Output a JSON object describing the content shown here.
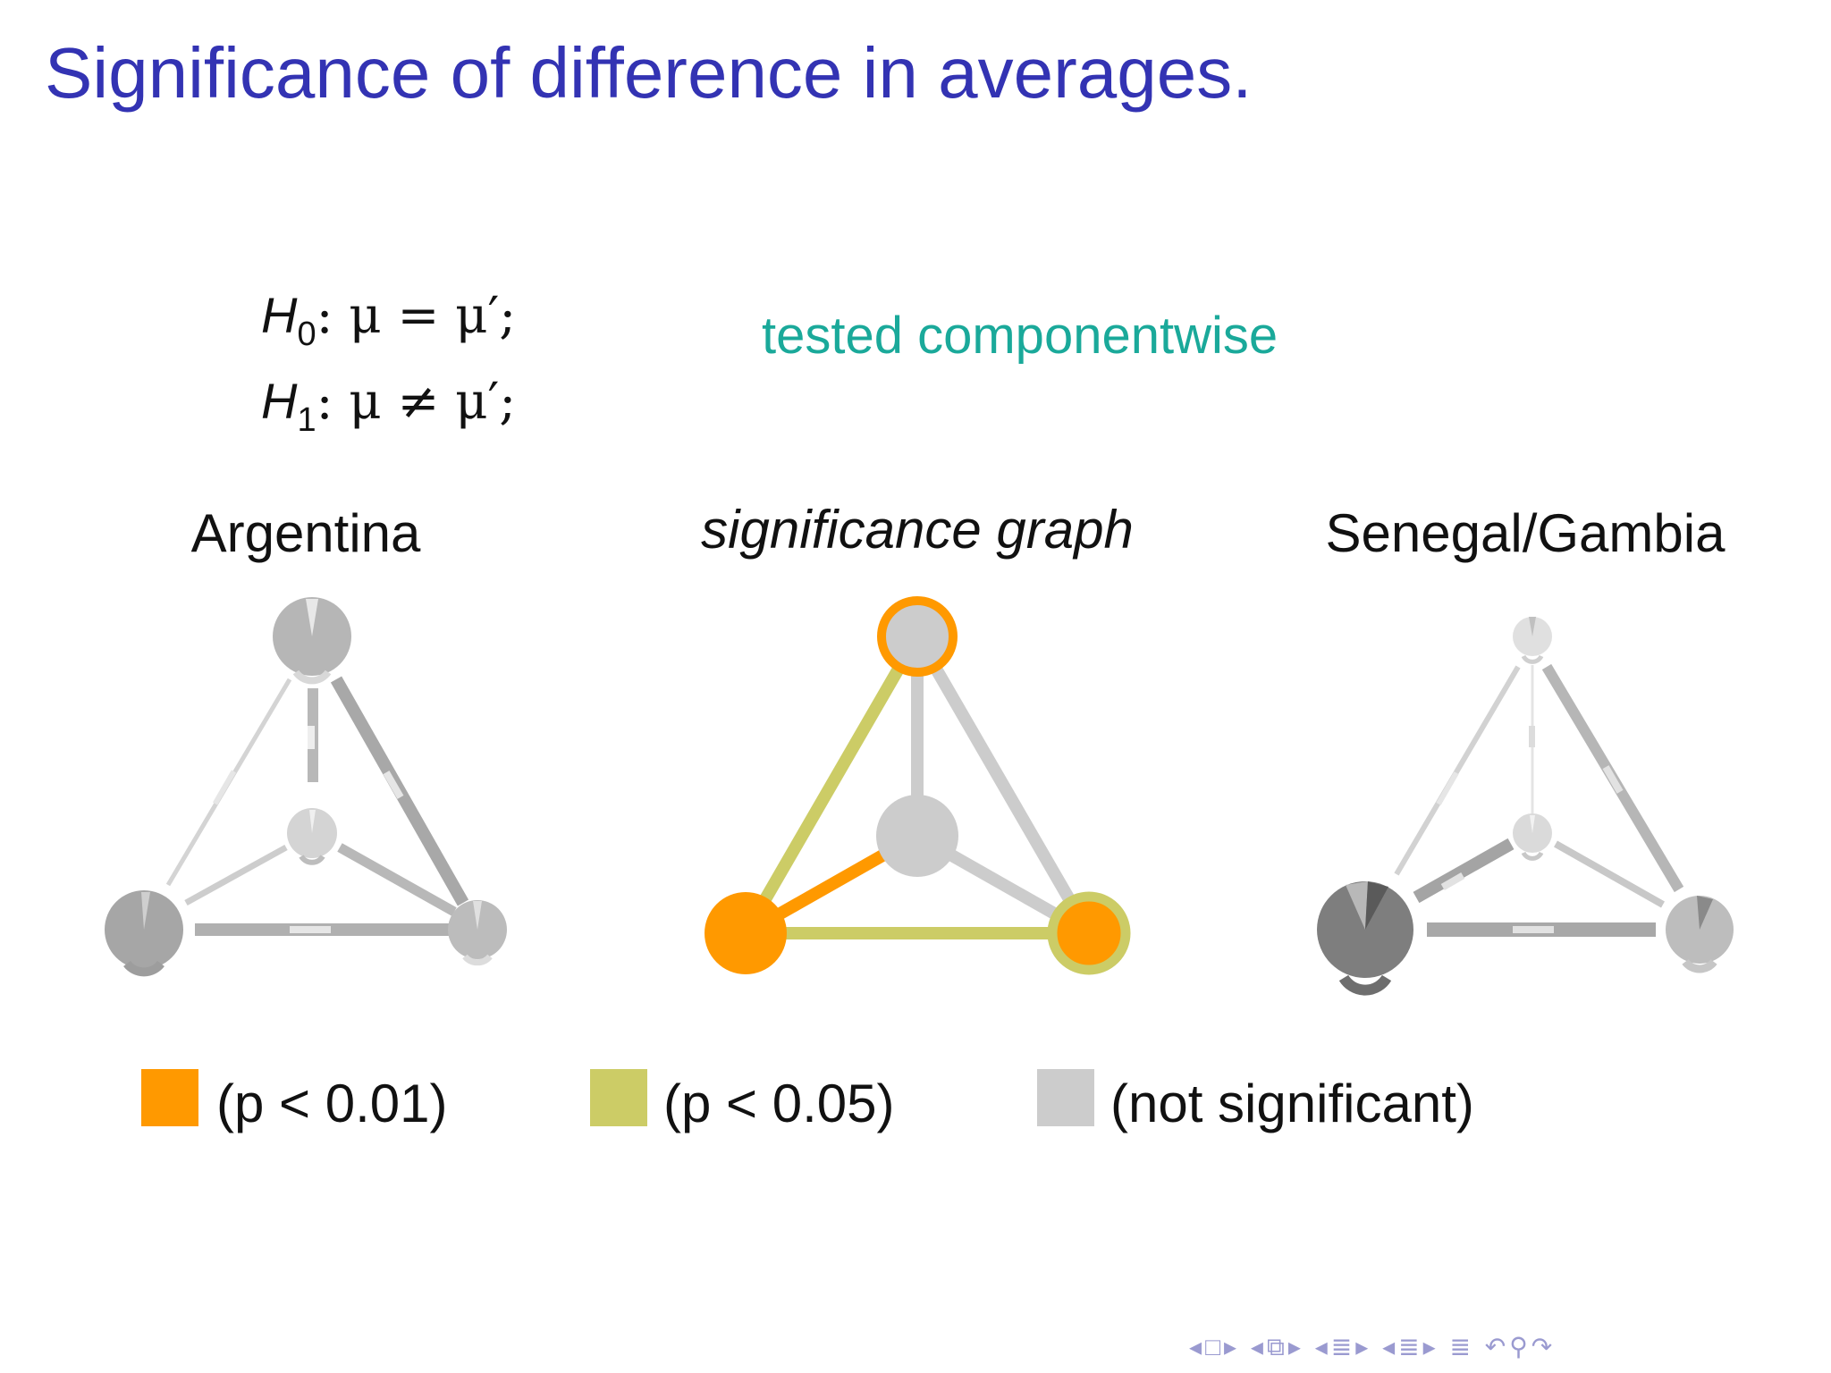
{
  "slide": {
    "title": "Significance of difference in averages.",
    "hypotheses": {
      "h0_name": "H",
      "h0_sub": "0",
      "h0_body": ": μ = μ′;",
      "h1_name": "H",
      "h1_sub": "1",
      "h1_body": ": μ ≠ μ′;"
    },
    "note": "tested componentwise"
  },
  "graphs": {
    "left_label": "Argentina",
    "center_label": "significance graph",
    "right_label": "Senegal/Gambia"
  },
  "legend": [
    {
      "label": "(p < 0.01)",
      "color": "#ff9900"
    },
    {
      "label": "(p < 0.05)",
      "color": "#cccc66"
    },
    {
      "label": "(not significant)",
      "color": "#cccccc"
    }
  ],
  "colors": {
    "title": "#3333b3",
    "note": "#1aa99a",
    "strong": "#ff9900",
    "weak": "#cccc66",
    "none": "#cccccc",
    "nav": "#9a9ad0"
  },
  "nav_icons": [
    "prev-frame-icon",
    "frame-icon",
    "next-frame-icon",
    "prev-subsection-icon",
    "subsection-icon",
    "next-subsection-icon",
    "prev-section-icon",
    "section-icon",
    "next-section-icon",
    "prev-slide-icon",
    "slide-icon",
    "next-slide-icon",
    "align-icon",
    "back-icon",
    "find-icon",
    "forward-icon"
  ]
}
